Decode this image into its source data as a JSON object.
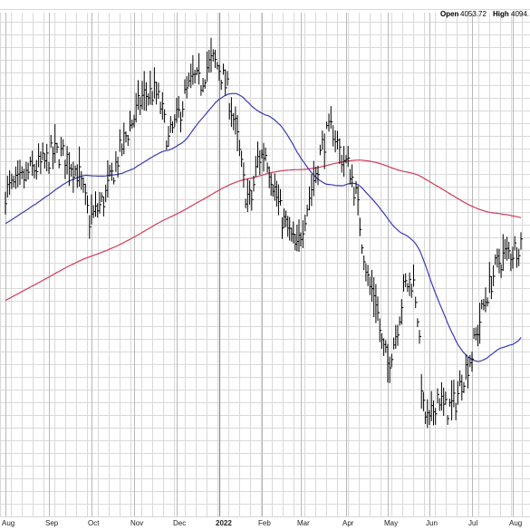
{
  "header": {
    "open_label": "Open",
    "open_value": "4053.72",
    "high_label": "High",
    "high_value": "4094."
  },
  "colors": {
    "background": "#ffffff",
    "grid": "#d9d9d9",
    "bars": "#000000",
    "ma_short": "#3a3ab8",
    "ma_long": "#d23a5a"
  },
  "chart_data": {
    "type": "line",
    "title": "",
    "xlabel": "",
    "ylabel": "",
    "ylim": [
      3500,
      4900
    ],
    "grid": true,
    "legend": "none",
    "x_tick_labels": [
      {
        "month": 0,
        "label": "Aug"
      },
      {
        "month": 1,
        "label": "Sep"
      },
      {
        "month": 2,
        "label": "Oct"
      },
      {
        "month": 3,
        "label": "Nov"
      },
      {
        "month": 4,
        "label": "Dec"
      },
      {
        "month": 5,
        "label": "2022"
      },
      {
        "month": 6,
        "label": "Feb"
      },
      {
        "month": 7,
        "label": "Mar"
      },
      {
        "month": 8,
        "label": "Apr"
      },
      {
        "month": 9,
        "label": "May"
      },
      {
        "month": 10,
        "label": "Jun"
      },
      {
        "month": 11,
        "label": "Jul"
      },
      {
        "month": 12,
        "label": "Aug"
      }
    ],
    "price_anchors": [
      [
        0,
        4420
      ],
      [
        0.3,
        4440
      ],
      [
        0.6,
        4480
      ],
      [
        0.9,
        4500
      ],
      [
        1.1,
        4530
      ],
      [
        1.4,
        4520
      ],
      [
        1.7,
        4470
      ],
      [
        1.95,
        4340
      ],
      [
        2.1,
        4360
      ],
      [
        2.3,
        4400
      ],
      [
        2.5,
        4470
      ],
      [
        2.75,
        4560
      ],
      [
        3.0,
        4630
      ],
      [
        3.2,
        4690
      ],
      [
        3.5,
        4700
      ],
      [
        3.65,
        4650
      ],
      [
        3.8,
        4560
      ],
      [
        4.0,
        4620
      ],
      [
        4.2,
        4690
      ],
      [
        4.4,
        4740
      ],
      [
        4.55,
        4720
      ],
      [
        4.7,
        4770
      ],
      [
        4.85,
        4790
      ],
      [
        5.0,
        4770
      ],
      [
        5.2,
        4700
      ],
      [
        5.4,
        4590
      ],
      [
        5.6,
        4420
      ],
      [
        5.75,
        4390
      ],
      [
        5.9,
        4510
      ],
      [
        6.1,
        4530
      ],
      [
        6.3,
        4440
      ],
      [
        6.5,
        4350
      ],
      [
        6.75,
        4290
      ],
      [
        6.9,
        4250
      ],
      [
        7.1,
        4360
      ],
      [
        7.3,
        4460
      ],
      [
        7.5,
        4560
      ],
      [
        7.7,
        4600
      ],
      [
        7.9,
        4520
      ],
      [
        8.1,
        4480
      ],
      [
        8.25,
        4400
      ],
      [
        8.4,
        4270
      ],
      [
        8.55,
        4150
      ],
      [
        8.7,
        4130
      ],
      [
        8.85,
        3990
      ],
      [
        9.0,
        3930
      ],
      [
        9.2,
        4020
      ],
      [
        9.4,
        4150
      ],
      [
        9.6,
        4170
      ],
      [
        9.7,
        4100
      ],
      [
        9.85,
        3800
      ],
      [
        10.0,
        3760
      ],
      [
        10.2,
        3850
      ],
      [
        10.35,
        3800
      ],
      [
        10.6,
        3820
      ],
      [
        10.8,
        3900
      ],
      [
        11.0,
        3960
      ],
      [
        11.2,
        4060
      ],
      [
        11.4,
        4140
      ],
      [
        11.6,
        4210
      ],
      [
        11.8,
        4240
      ],
      [
        12.0,
        4250
      ],
      [
        12.2,
        4280
      ]
    ],
    "series": [
      {
        "name": "",
        "period": 50,
        "color": "#3a3ab8"
      },
      {
        "name": "",
        "period": 200,
        "color": "#d23a5a"
      }
    ]
  }
}
